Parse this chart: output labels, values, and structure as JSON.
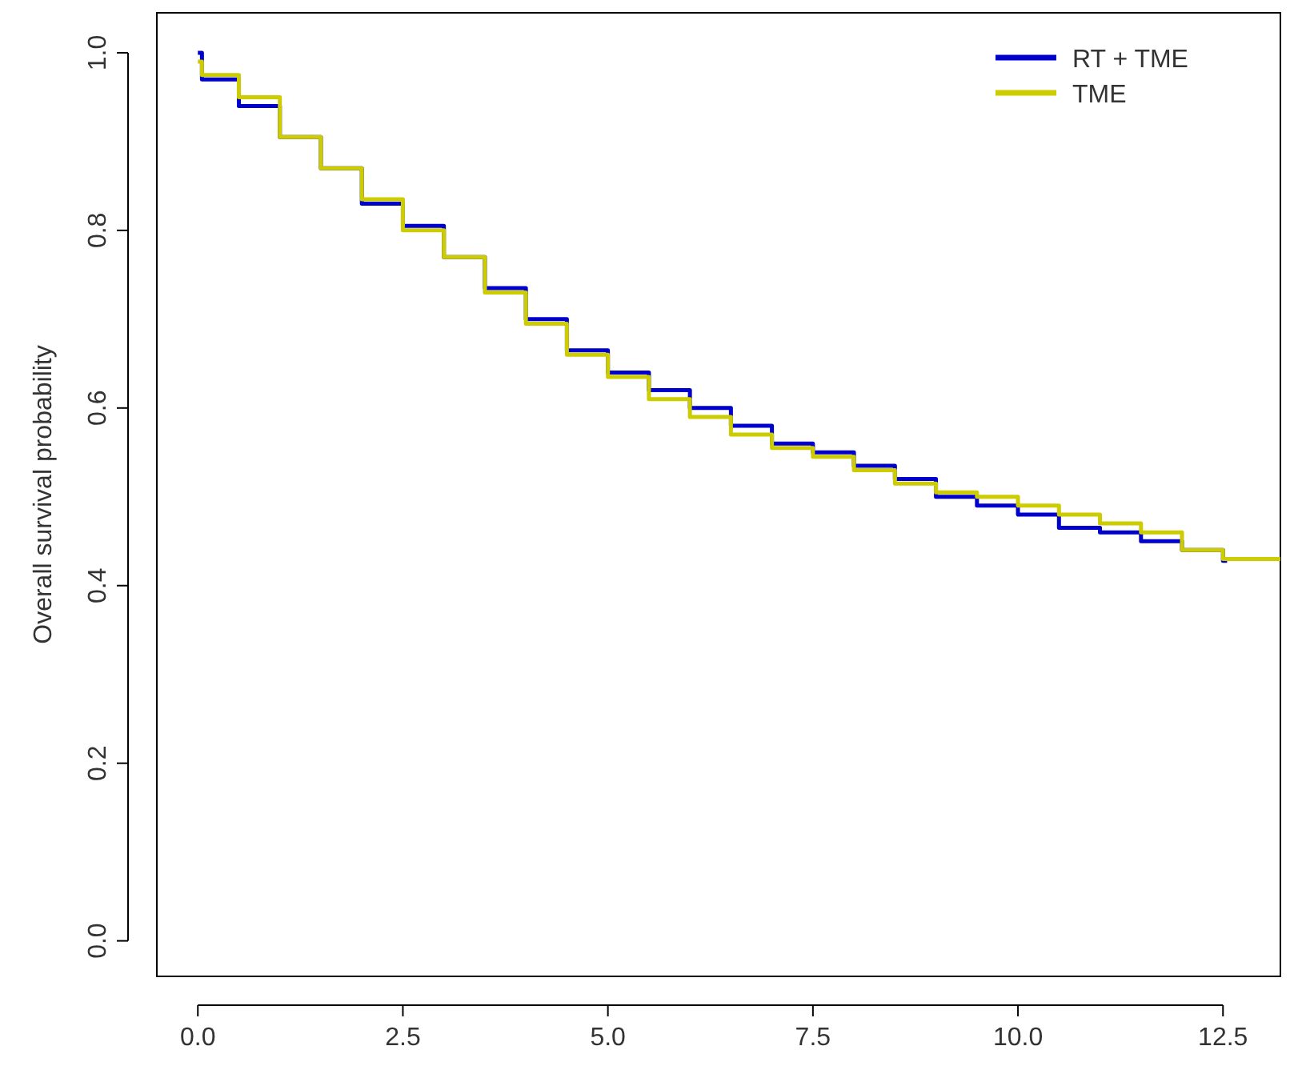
{
  "chart_data": {
    "type": "step",
    "ylabel": "Overall survival probability",
    "xlim": [
      -0.5,
      13.2
    ],
    "ylim": [
      -0.04,
      1.045
    ],
    "xticks": [
      {
        "value": 0,
        "label": "0.0"
      },
      {
        "value": 2.5,
        "label": "2.5"
      },
      {
        "value": 5,
        "label": "5.0"
      },
      {
        "value": 7.5,
        "label": "7.5"
      },
      {
        "value": 10,
        "label": "10.0"
      },
      {
        "value": 12.5,
        "label": "12.5"
      }
    ],
    "yticks": [
      {
        "value": 0,
        "label": "0.0"
      },
      {
        "value": 0.2,
        "label": "0.2"
      },
      {
        "value": 0.4,
        "label": "0.4"
      },
      {
        "value": 0.6,
        "label": "0.6"
      },
      {
        "value": 0.8,
        "label": "0.8"
      },
      {
        "value": 1,
        "label": "1.0"
      }
    ],
    "legend": "top right",
    "grid": false,
    "line_style": "solid",
    "marker": "none",
    "series": [
      {
        "name": "RT + TME",
        "color": "#0000cc",
        "x": [
          0,
          0.05,
          0.5,
          1,
          1.5,
          2,
          2.5,
          3,
          3.5,
          4,
          4.5,
          5,
          5.5,
          6,
          6.5,
          7,
          7.5,
          8,
          8.5,
          9,
          9.5,
          10,
          10.5,
          11,
          11.5,
          12,
          12.5,
          12.55
        ],
        "values": [
          1,
          0.97,
          0.94,
          0.905,
          0.87,
          0.83,
          0.805,
          0.77,
          0.735,
          0.7,
          0.665,
          0.64,
          0.62,
          0.6,
          0.58,
          0.56,
          0.55,
          0.535,
          0.52,
          0.5,
          0.49,
          0.48,
          0.465,
          0.46,
          0.45,
          0.44,
          0.428,
          0.428
        ]
      },
      {
        "name": "TME",
        "color": "#cccc00",
        "x": [
          0,
          0.05,
          0.5,
          1,
          1.5,
          2,
          2.5,
          3,
          3.5,
          4,
          4.5,
          5,
          5.5,
          6,
          6.5,
          7,
          7.5,
          8,
          8.5,
          9,
          9.5,
          10,
          10.5,
          11,
          11.5,
          12,
          12.5,
          13.2
        ],
        "values": [
          0.99,
          0.975,
          0.95,
          0.905,
          0.87,
          0.835,
          0.8,
          0.77,
          0.73,
          0.695,
          0.66,
          0.635,
          0.61,
          0.59,
          0.57,
          0.555,
          0.545,
          0.53,
          0.515,
          0.505,
          0.5,
          0.49,
          0.48,
          0.47,
          0.46,
          0.44,
          0.43,
          0.428
        ]
      }
    ]
  }
}
